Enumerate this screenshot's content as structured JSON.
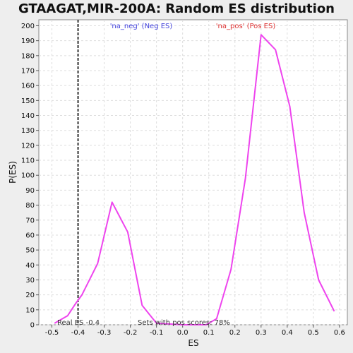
{
  "chart_data": {
    "type": "line",
    "title": "GTAAGAT,MIR-200A: Random ES distribution",
    "xlabel": "ES",
    "ylabel": "P(ES)",
    "xlim": [
      -0.55,
      0.63
    ],
    "ylim": [
      0,
      204
    ],
    "xticks": [
      -0.5,
      -0.4,
      -0.3,
      -0.2,
      -0.1,
      0.0,
      0.1,
      0.2,
      0.3,
      0.4,
      0.5,
      0.6
    ],
    "xtick_labels": [
      "-0.5",
      "-0.4",
      "-0.3",
      "-0.2",
      "-0.1",
      "0.0",
      "0.1",
      "0.2",
      "0.3",
      "0.4",
      "0.5",
      "0.6"
    ],
    "yticks": [
      0,
      10,
      20,
      30,
      40,
      50,
      60,
      70,
      80,
      90,
      100,
      110,
      120,
      130,
      140,
      150,
      160,
      170,
      180,
      190,
      200
    ],
    "grid": true,
    "series": [
      {
        "color": "#ee44ee",
        "x": [
          -0.49,
          -0.44,
          -0.41,
          -0.385,
          -0.325,
          -0.27,
          -0.21,
          -0.155,
          -0.1,
          0.0,
          0.09,
          0.13,
          0.185,
          0.24,
          0.3,
          0.355,
          0.41,
          0.465,
          0.52,
          0.58
        ],
        "y": [
          1,
          6,
          14,
          20,
          41,
          82,
          62,
          13,
          1,
          0,
          0,
          4,
          37,
          98,
          194,
          184,
          146,
          75,
          30,
          9
        ]
      }
    ],
    "reference_line": {
      "x": -0.4,
      "label": "Real ES -0.4",
      "color": "#333333"
    },
    "legend": [
      {
        "text": "'na_neg' (Neg ES)",
        "color": "#4444dd"
      },
      {
        "text": "'na_pos' (Pos ES)",
        "color": "#dd3333"
      }
    ],
    "annotation": "Sets with pos scores: 78%"
  }
}
